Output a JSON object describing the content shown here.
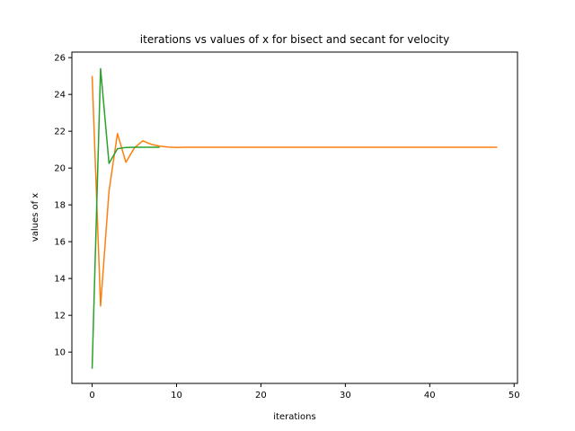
{
  "chart_data": {
    "type": "line",
    "title": "iterations vs values of x for bisect and secant for velocity",
    "xlabel": "iterations",
    "ylabel": "values of x",
    "xlim": [
      -2.4,
      50.4
    ],
    "ylim": [
      8.3,
      26.3
    ],
    "xticks": [
      0,
      10,
      20,
      30,
      40,
      50
    ],
    "yticks": [
      10,
      12,
      14,
      16,
      18,
      20,
      22,
      24,
      26
    ],
    "grid": false,
    "series": [
      {
        "color": "#ff7f0e",
        "x": [
          0,
          1,
          2,
          3,
          4,
          5,
          6,
          7,
          8,
          9,
          10,
          11,
          12,
          13,
          14,
          15,
          16,
          17,
          18,
          19,
          20,
          21,
          22,
          23,
          24,
          25,
          26,
          27,
          28,
          29,
          30,
          31,
          32,
          33,
          34,
          35,
          36,
          37,
          38,
          39,
          40,
          41,
          42,
          43,
          44,
          45,
          46,
          47,
          48
        ],
        "y": [
          25.0,
          12.5,
          18.75,
          21.875,
          20.3125,
          21.09,
          21.48,
          21.29,
          21.19,
          21.14,
          21.12,
          21.13,
          21.13,
          21.13,
          21.13,
          21.13,
          21.13,
          21.13,
          21.13,
          21.13,
          21.13,
          21.13,
          21.13,
          21.13,
          21.13,
          21.13,
          21.13,
          21.13,
          21.13,
          21.13,
          21.13,
          21.13,
          21.13,
          21.13,
          21.13,
          21.13,
          21.13,
          21.13,
          21.13,
          21.13,
          21.13,
          21.13,
          21.13,
          21.13,
          21.13,
          21.13,
          21.13,
          21.13,
          21.13
        ]
      },
      {
        "color": "#2ca02c",
        "x": [
          0,
          1,
          2,
          3,
          4,
          5,
          6,
          7,
          8
        ],
        "y": [
          9.1,
          25.4,
          20.25,
          21.05,
          21.12,
          21.13,
          21.13,
          21.13,
          21.13
        ]
      }
    ]
  }
}
